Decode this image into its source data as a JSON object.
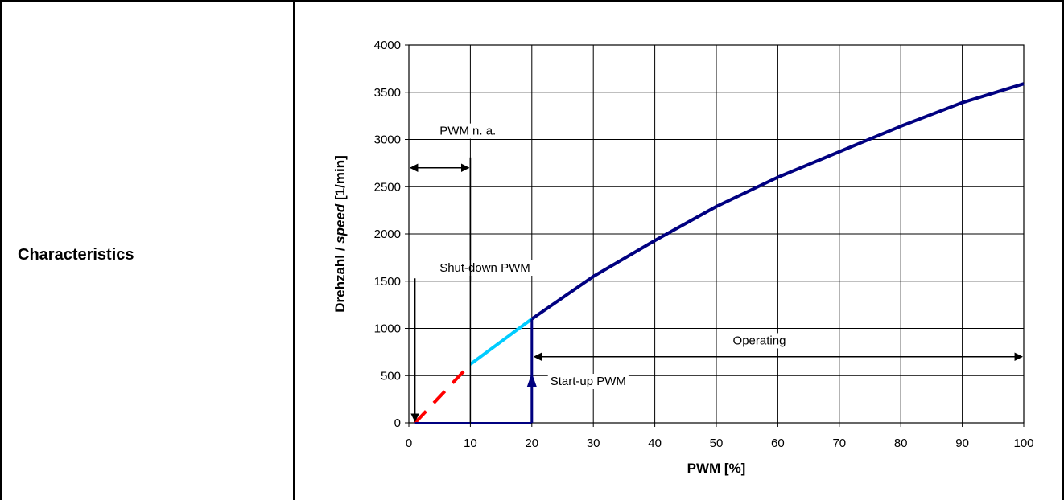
{
  "row_label": "Characteristics",
  "chart_data": {
    "type": "line",
    "title": "",
    "xlabel": "PWM [%]",
    "ylabel_parts": [
      "Drehzahl / ",
      "speed",
      " [1/min]"
    ],
    "xlim": [
      0,
      100
    ],
    "ylim": [
      0,
      4000
    ],
    "x_ticks": [
      0,
      10,
      20,
      30,
      40,
      50,
      60,
      70,
      80,
      90,
      100
    ],
    "y_ticks": [
      0,
      500,
      1000,
      1500,
      2000,
      2500,
      3000,
      3500,
      4000
    ],
    "grid": true,
    "series": [
      {
        "segment": "shutdown-dashed",
        "color": "#ff0000",
        "style": "dashed",
        "x": [
          1,
          10
        ],
        "y": [
          0,
          620
        ]
      },
      {
        "segment": "hysteresis",
        "color": "#00ccff",
        "style": "solid",
        "x": [
          10,
          20
        ],
        "y": [
          620,
          1100
        ]
      },
      {
        "segment": "operating",
        "color": "#000080",
        "style": "solid",
        "x": [
          20,
          30,
          40,
          50,
          60,
          70,
          80,
          90,
          100
        ],
        "y": [
          1100,
          1550,
          1930,
          2290,
          2600,
          2870,
          3140,
          3390,
          3590
        ]
      }
    ],
    "annotations": [
      {
        "text": "PWM n. a.",
        "x": 5,
        "y": 3050
      },
      {
        "text": "Shut-down PWM",
        "x": 5,
        "y": 1600
      },
      {
        "text": "Start-up PWM",
        "x": 23,
        "y": 400
      },
      {
        "text": "Operating",
        "x": 57,
        "y": 830
      }
    ],
    "markers": {
      "pwm_na_range": [
        0,
        10
      ],
      "pwm_na_level": 2700,
      "operating_range": [
        20,
        100
      ],
      "operating_level": 700,
      "shutdown_x": 1,
      "startup_x": 20,
      "startup_level": 1100
    },
    "colors": {
      "operating": "#000080",
      "hysteresis": "#00ccff",
      "shutdown": "#ff0000"
    }
  }
}
